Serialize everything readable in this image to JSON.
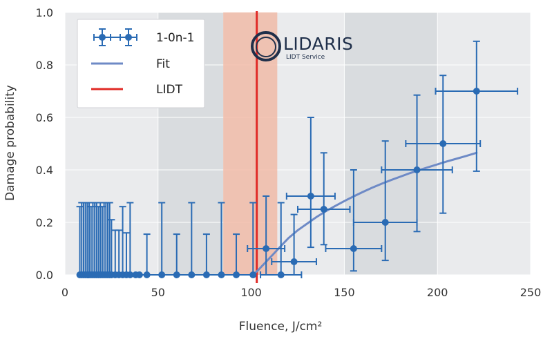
{
  "colors": {
    "background": "#ffffff",
    "plot_background": "#eaebed",
    "band_dark": "#d9dcdf",
    "grid": "#ffffff",
    "data": "#2a6bb4",
    "fit": "#6e8ac6",
    "lidt": "#e02a26",
    "lidt_band": "#f0b49e"
  },
  "logo": {
    "name": "LIDARIS",
    "subtitle": "LIDT Service"
  },
  "chart_data": {
    "type": "scatter",
    "xlabel": "Fluence, J/cm²",
    "ylabel": "Damage probability",
    "xlim": [
      0,
      250
    ],
    "ylim": [
      0,
      1.0
    ],
    "x_ticks": [
      "0",
      "50",
      "100",
      "150",
      "200",
      "250"
    ],
    "y_ticks": [
      "0.0",
      "0.2",
      "0.4",
      "0.6",
      "0.8",
      "1.0"
    ],
    "grid": true,
    "legend_position": "top-left",
    "shaded_bands": [
      [
        50,
        85
      ],
      [
        150,
        200
      ]
    ],
    "lidt": {
      "name": "LIDT",
      "value": 103,
      "band": [
        85,
        114
      ]
    },
    "series": [
      {
        "name": "1-0n-1",
        "type": "errorbar",
        "points": [
          {
            "x": 8,
            "y": 0.0,
            "xerr": 0,
            "ylo": 0.0,
            "yhi": 0.26
          },
          {
            "x": 9,
            "y": 0.0,
            "xerr": 0,
            "ylo": 0.0,
            "yhi": 0.275
          },
          {
            "x": 10,
            "y": 0.0,
            "xerr": 0,
            "ylo": 0.0,
            "yhi": 0.275
          },
          {
            "x": 11,
            "y": 0.0,
            "xerr": 0,
            "ylo": 0.0,
            "yhi": 0.275
          },
          {
            "x": 12,
            "y": 0.0,
            "xerr": 0,
            "ylo": 0.0,
            "yhi": 0.275
          },
          {
            "x": 13,
            "y": 0.0,
            "xerr": 0,
            "ylo": 0.0,
            "yhi": 0.275
          },
          {
            "x": 14,
            "y": 0.0,
            "xerr": 0,
            "ylo": 0.0,
            "yhi": 0.26
          },
          {
            "x": 15,
            "y": 0.0,
            "xerr": 0,
            "ylo": 0.0,
            "yhi": 0.275
          },
          {
            "x": 16,
            "y": 0.0,
            "xerr": 0,
            "ylo": 0.0,
            "yhi": 0.275
          },
          {
            "x": 17,
            "y": 0.0,
            "xerr": 0,
            "ylo": 0.0,
            "yhi": 0.275
          },
          {
            "x": 18,
            "y": 0.0,
            "xerr": 0,
            "ylo": 0.0,
            "yhi": 0.26
          },
          {
            "x": 19,
            "y": 0.0,
            "xerr": 0,
            "ylo": 0.0,
            "yhi": 0.275
          },
          {
            "x": 20,
            "y": 0.0,
            "xerr": 0,
            "ylo": 0.0,
            "yhi": 0.26
          },
          {
            "x": 21,
            "y": 0.0,
            "xerr": 0,
            "ylo": 0.0,
            "yhi": 0.275
          },
          {
            "x": 22,
            "y": 0.0,
            "xerr": 0,
            "ylo": 0.0,
            "yhi": 0.275
          },
          {
            "x": 23,
            "y": 0.0,
            "xerr": 0,
            "ylo": 0.0,
            "yhi": 0.275
          },
          {
            "x": 24,
            "y": 0.0,
            "xerr": 0,
            "ylo": 0.0,
            "yhi": 0.275
          },
          {
            "x": 25,
            "y": 0.0,
            "xerr": 0,
            "ylo": 0.0,
            "yhi": 0.21
          },
          {
            "x": 27,
            "y": 0.0,
            "xerr": 0,
            "ylo": 0.0,
            "yhi": 0.17
          },
          {
            "x": 29,
            "y": 0.0,
            "xerr": 0,
            "ylo": 0.0,
            "yhi": 0.17
          },
          {
            "x": 31,
            "y": 0.0,
            "xerr": 0,
            "ylo": 0.0,
            "yhi": 0.26
          },
          {
            "x": 33,
            "y": 0.0,
            "xerr": 0,
            "ylo": 0.0,
            "yhi": 0.16
          },
          {
            "x": 35,
            "y": 0.0,
            "xerr": 0,
            "ylo": 0.0,
            "yhi": 0.275
          },
          {
            "x": 38,
            "y": 0.0,
            "xerr": 0,
            "ylo": 0.0,
            "yhi": 0.0
          },
          {
            "x": 40,
            "y": 0.0,
            "xerr": 0,
            "ylo": 0.0,
            "yhi": 0.0
          },
          {
            "x": 44,
            "y": 0.0,
            "xerr": 0,
            "ylo": 0.0,
            "yhi": 0.155
          },
          {
            "x": 52,
            "y": 0.0,
            "xerr": 0,
            "ylo": 0.0,
            "yhi": 0.275
          },
          {
            "x": 60,
            "y": 0.0,
            "xerr": 0,
            "ylo": 0.0,
            "yhi": 0.155
          },
          {
            "x": 68,
            "y": 0.0,
            "xerr": 0,
            "ylo": 0.0,
            "yhi": 0.275
          },
          {
            "x": 76,
            "y": 0.0,
            "xerr": 0,
            "ylo": 0.0,
            "yhi": 0.155
          },
          {
            "x": 84,
            "y": 0.0,
            "xerr": 0,
            "ylo": 0.0,
            "yhi": 0.275
          },
          {
            "x": 92,
            "y": 0.0,
            "xerr": 0,
            "ylo": 0.0,
            "yhi": 0.155
          },
          {
            "x": 101,
            "y": 0.0,
            "xerr": 0,
            "ylo": 0.0,
            "yhi": 0.275
          },
          {
            "x": 108,
            "y": 0.1,
            "xerr": 10,
            "ylo": 0.0,
            "yhi": 0.3
          },
          {
            "x": 116,
            "y": 0.0,
            "xerr": 11,
            "ylo": 0.0,
            "yhi": 0.275
          },
          {
            "x": 123,
            "y": 0.05,
            "xerr": 12,
            "ylo": 0.0,
            "yhi": 0.23
          },
          {
            "x": 132,
            "y": 0.3,
            "xerr": 13,
            "ylo": 0.105,
            "yhi": 0.6
          },
          {
            "x": 139,
            "y": 0.25,
            "xerr": 14,
            "ylo": 0.115,
            "yhi": 0.465
          },
          {
            "x": 155,
            "y": 0.1,
            "xerr": 15,
            "ylo": 0.015,
            "yhi": 0.4
          },
          {
            "x": 172,
            "y": 0.2,
            "xerr": 17,
            "ylo": 0.055,
            "yhi": 0.51
          },
          {
            "x": 189,
            "y": 0.4,
            "xerr": 19,
            "ylo": 0.165,
            "yhi": 0.685
          },
          {
            "x": 203,
            "y": 0.5,
            "xerr": 20,
            "ylo": 0.235,
            "yhi": 0.76
          },
          {
            "x": 221,
            "y": 0.7,
            "xerr": 22,
            "ylo": 0.395,
            "yhi": 0.89
          }
        ]
      },
      {
        "name": "Fit",
        "type": "line",
        "x": [
          101,
          104,
          108,
          112,
          116,
          120,
          125,
          130,
          135,
          140,
          145,
          150,
          155,
          160,
          165,
          170,
          175,
          180,
          185,
          190,
          195,
          200,
          205,
          210,
          215,
          221
        ],
        "y": [
          0.0,
          0.02,
          0.05,
          0.08,
          0.11,
          0.14,
          0.17,
          0.195,
          0.22,
          0.242,
          0.262,
          0.281,
          0.299,
          0.316,
          0.332,
          0.347,
          0.361,
          0.374,
          0.387,
          0.399,
          0.41,
          0.421,
          0.432,
          0.442,
          0.452,
          0.465
        ]
      }
    ]
  }
}
